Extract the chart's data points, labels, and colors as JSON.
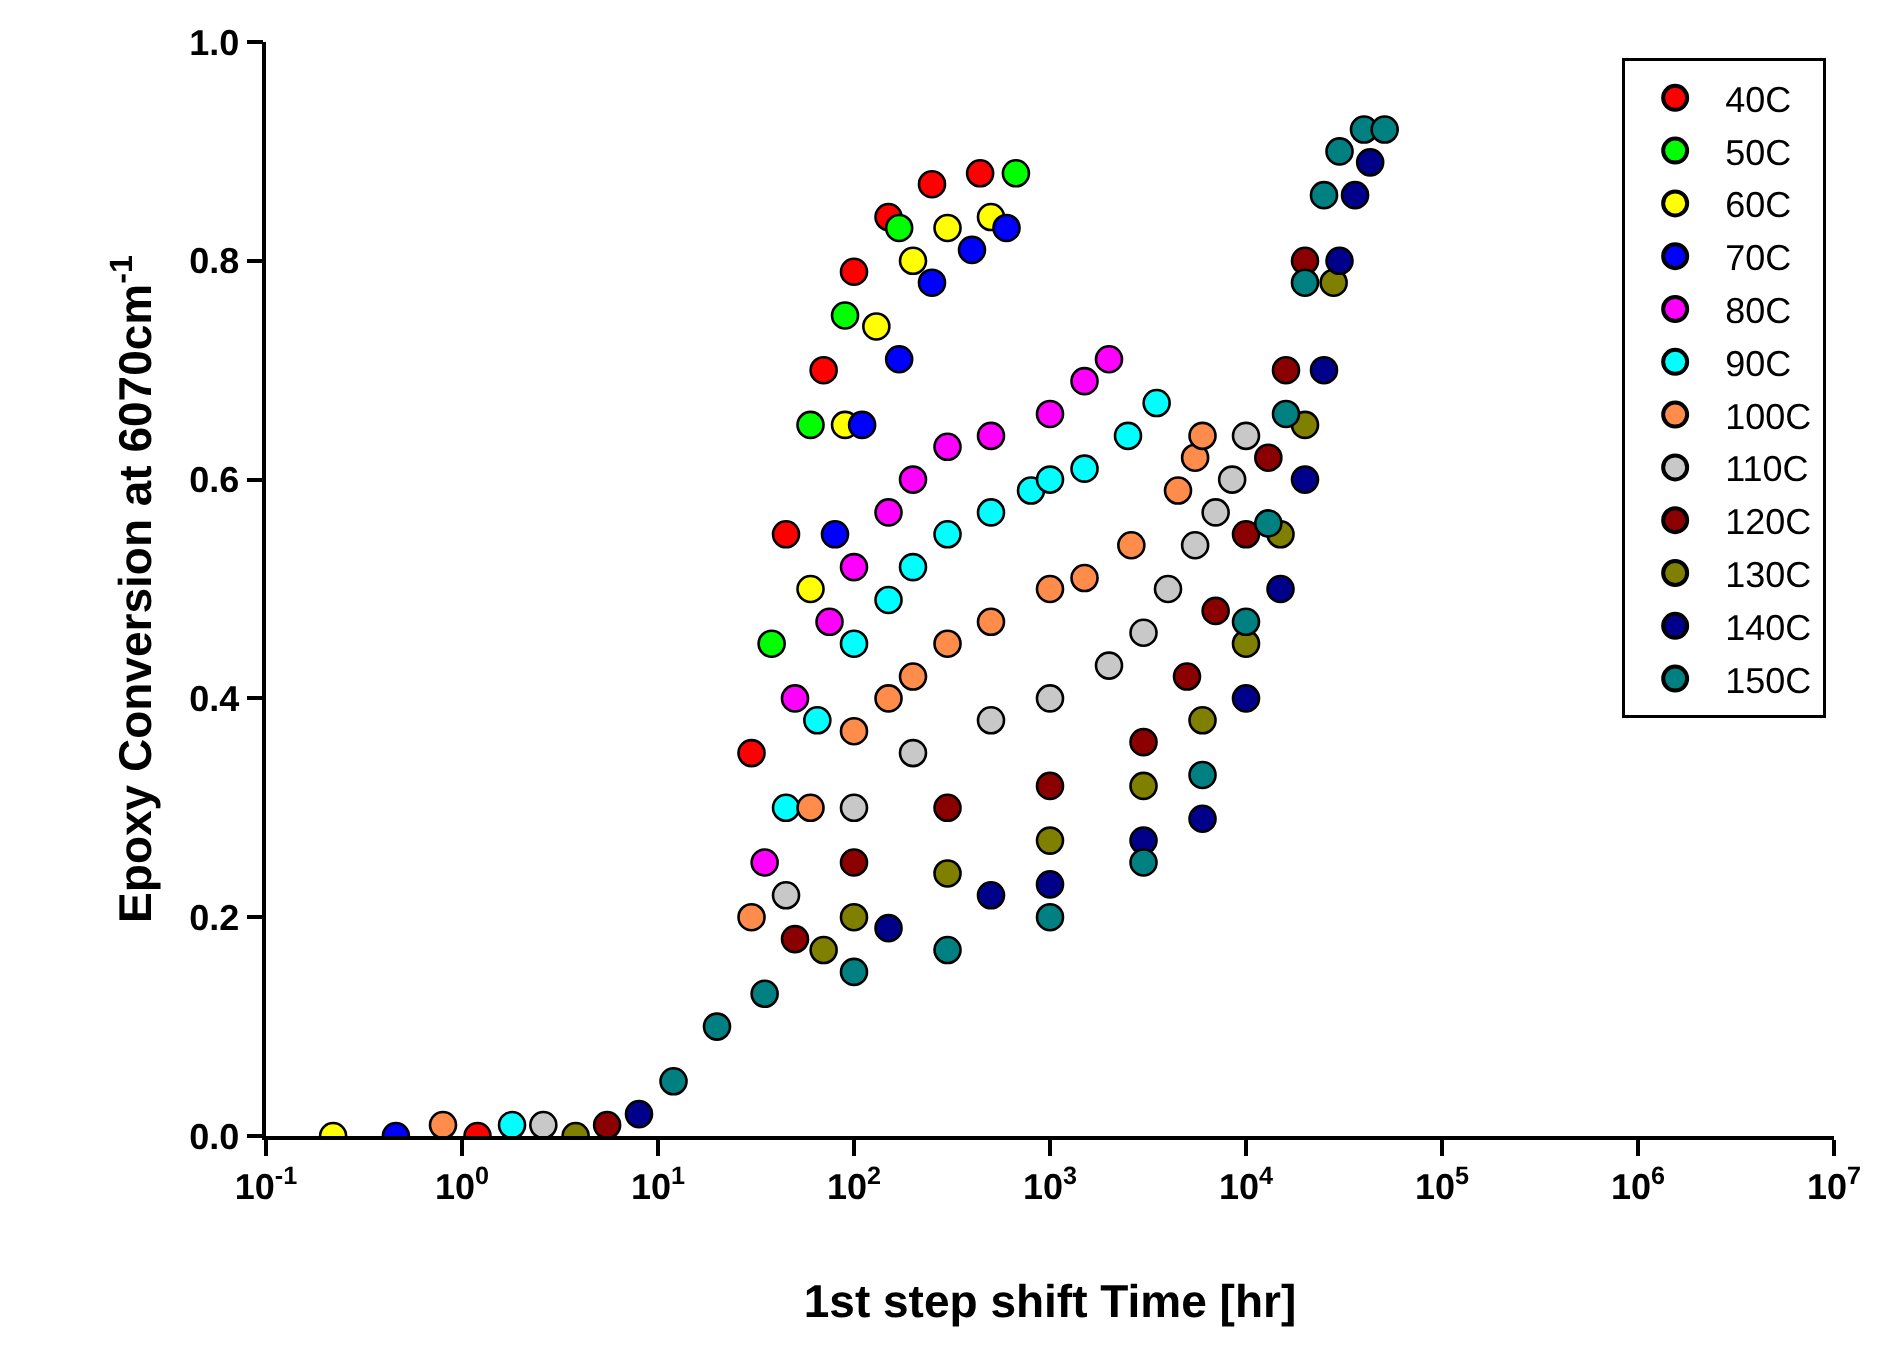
{
  "chart_data": {
    "type": "scatter",
    "xlabel": "1st step shift Time [hr]",
    "ylabel": "Epoxy Conversion at 6070cm$^{-1}$",
    "log": "x",
    "xlim": [
      0.1,
      10000000
    ],
    "xticks": [
      {
        "value": 0.1,
        "label": "10$^{-1}$"
      },
      {
        "value": 1,
        "label": "10$^{0}$"
      },
      {
        "value": 10,
        "label": "10$^{1}$"
      },
      {
        "value": 100,
        "label": "10$^{2}$"
      },
      {
        "value": 1000,
        "label": "10$^{3}$"
      },
      {
        "value": 10000,
        "label": "10$^{4}$"
      },
      {
        "value": 100000,
        "label": "10$^{5}$"
      },
      {
        "value": 1000000,
        "label": "10$^{6}$"
      },
      {
        "value": 10000000,
        "label": "10$^{7}$"
      }
    ],
    "ylim": [
      0,
      1
    ],
    "yticks": [
      {
        "value": 0,
        "label": "0.0"
      },
      {
        "value": 0.2,
        "label": "0.2"
      },
      {
        "value": 0.4,
        "label": "0.4"
      },
      {
        "value": 0.6,
        "label": "0.6"
      },
      {
        "value": 0.8,
        "label": "0.8"
      },
      {
        "value": 1,
        "label": "1.0"
      }
    ],
    "legend": "top right",
    "marker": "circle",
    "series": [
      {
        "name": "40C",
        "color": "#ff0000",
        "x": [
          1.2,
          30,
          45,
          70,
          100,
          150,
          250,
          440
        ],
        "values": [
          0,
          0.35,
          0.55,
          0.7,
          0.79,
          0.84,
          0.87,
          0.88
        ]
      },
      {
        "name": "50C",
        "color": "#00ff00",
        "x": [
          38,
          60,
          90,
          170,
          670
        ],
        "values": [
          0.45,
          0.65,
          0.75,
          0.83,
          0.88
        ]
      },
      {
        "name": "60C",
        "color": "#ffff00",
        "x": [
          0.22,
          60,
          90,
          130,
          200,
          300,
          500
        ],
        "values": [
          0,
          0.5,
          0.65,
          0.74,
          0.8,
          0.83,
          0.84
        ]
      },
      {
        "name": "70C",
        "color": "#0000ff",
        "x": [
          0.46,
          80,
          110,
          170,
          250,
          400,
          600
        ],
        "values": [
          0,
          0.55,
          0.65,
          0.71,
          0.78,
          0.81,
          0.83
        ]
      },
      {
        "name": "80C",
        "color": "#ff00ff",
        "x": [
          35,
          50,
          75,
          100,
          150,
          200,
          300,
          500,
          1000,
          1500,
          2000
        ],
        "values": [
          0.25,
          0.4,
          0.47,
          0.52,
          0.57,
          0.6,
          0.63,
          0.64,
          0.66,
          0.69,
          0.71
        ]
      },
      {
        "name": "90C",
        "color": "#00ffff",
        "x": [
          1.8,
          45,
          65,
          100,
          150,
          200,
          300,
          500,
          800,
          1000,
          1500,
          2500,
          3500
        ],
        "values": [
          0.01,
          0.3,
          0.38,
          0.45,
          0.49,
          0.52,
          0.55,
          0.57,
          0.59,
          0.6,
          0.61,
          0.64,
          0.67
        ]
      },
      {
        "name": "100C",
        "color": "#ff8c4a",
        "x": [
          0.8,
          30,
          60,
          100,
          150,
          200,
          300,
          500,
          1000,
          1500,
          2600,
          4500,
          5500,
          6000
        ],
        "values": [
          0.01,
          0.2,
          0.3,
          0.37,
          0.4,
          0.42,
          0.45,
          0.47,
          0.5,
          0.51,
          0.54,
          0.59,
          0.62,
          0.64
        ]
      },
      {
        "name": "110C",
        "color": "#c8c8c8",
        "x": [
          2.6,
          45,
          100,
          200,
          500,
          1000,
          2000,
          3000,
          4000,
          5500,
          7000,
          8500,
          10000
        ],
        "values": [
          0.01,
          0.22,
          0.3,
          0.35,
          0.38,
          0.4,
          0.43,
          0.46,
          0.5,
          0.54,
          0.57,
          0.6,
          0.64
        ]
      },
      {
        "name": "120C",
        "color": "#8b0000",
        "x": [
          5.5,
          50,
          100,
          300,
          1000,
          3000,
          5000,
          7000,
          10000,
          13000,
          16000,
          20000
        ],
        "values": [
          0.01,
          0.18,
          0.25,
          0.3,
          0.32,
          0.36,
          0.42,
          0.48,
          0.55,
          0.62,
          0.7,
          0.8
        ]
      },
      {
        "name": "130C",
        "color": "#7f7f00",
        "x": [
          3.8,
          70,
          100,
          300,
          1000,
          3000,
          6000,
          10000,
          15000,
          20000,
          28000
        ],
        "values": [
          0,
          0.17,
          0.2,
          0.24,
          0.27,
          0.32,
          0.38,
          0.45,
          0.55,
          0.65,
          0.78
        ]
      },
      {
        "name": "140C",
        "color": "#00008b",
        "x": [
          8,
          150,
          500,
          1000,
          3000,
          6000,
          10000,
          15000,
          20000,
          25000,
          30000,
          36000,
          43000
        ],
        "values": [
          0.02,
          0.19,
          0.22,
          0.23,
          0.27,
          0.29,
          0.4,
          0.5,
          0.6,
          0.7,
          0.8,
          0.86,
          0.89
        ]
      },
      {
        "name": "150C",
        "color": "#008080",
        "x": [
          12,
          20,
          35,
          100,
          300,
          1000,
          3000,
          6000,
          10000,
          13000,
          16000,
          20000,
          25000,
          30000,
          40000,
          51000
        ],
        "values": [
          0.05,
          0.1,
          0.13,
          0.15,
          0.17,
          0.2,
          0.25,
          0.33,
          0.47,
          0.56,
          0.66,
          0.78,
          0.86,
          0.9,
          0.92,
          0.92
        ]
      }
    ]
  }
}
